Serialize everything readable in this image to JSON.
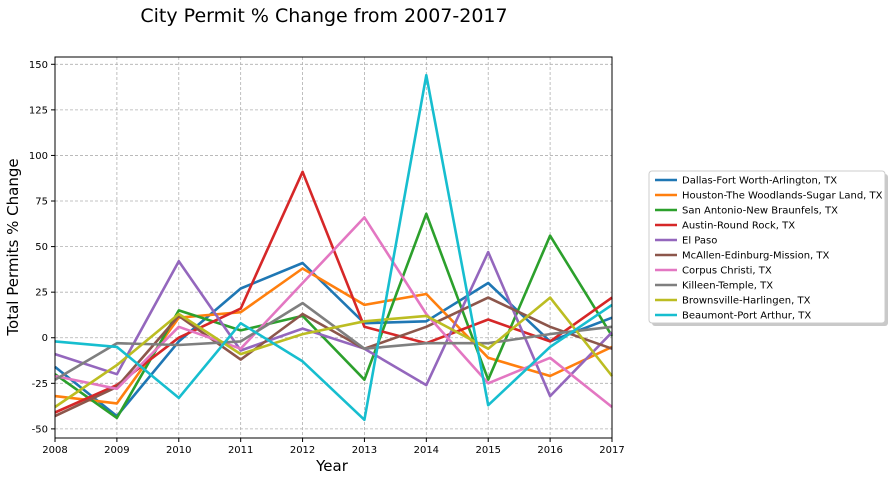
{
  "chart_data": {
    "type": "line",
    "title": "City Permit % Change from 2007-2017",
    "xlabel": "Year",
    "ylabel": "Total Permits % Change",
    "x": [
      2008,
      2009,
      2010,
      2011,
      2012,
      2013,
      2014,
      2015,
      2016,
      2017
    ],
    "xlim": [
      2008,
      2017
    ],
    "ylim": [
      -55,
      154
    ],
    "yticks": [
      -50,
      -25,
      0,
      25,
      50,
      75,
      100,
      125,
      150
    ],
    "grid": true,
    "legend_position": "right",
    "series": [
      {
        "name": "Dallas-Fort Worth-Arlington, TX",
        "color": "#1f77b4",
        "values": [
          -16,
          -43,
          -2,
          27,
          41,
          8,
          9,
          30,
          -2,
          11
        ]
      },
      {
        "name": "Houston-The Woodlands-Sugar Land, TX",
        "color": "#ff7f0e",
        "values": [
          -32,
          -36,
          11,
          14,
          38,
          18,
          24,
          -11,
          -21,
          -5
        ]
      },
      {
        "name": "San Antonio-New Braunfels, TX",
        "color": "#2ca02c",
        "values": [
          -20,
          -44,
          15,
          4,
          12,
          -23,
          68,
          -23,
          56,
          1
        ]
      },
      {
        "name": "Austin-Round Rock, TX",
        "color": "#d62728",
        "values": [
          -41,
          -26,
          0,
          16,
          91,
          6,
          -3,
          10,
          -2,
          22
        ]
      },
      {
        "name": "El Paso",
        "color": "#9467bd",
        "values": [
          -9,
          -20,
          42,
          -7,
          5,
          -6,
          -26,
          47,
          -32,
          3
        ]
      },
      {
        "name": "McAllen-Edinburg-Mission, TX",
        "color": "#8c564b",
        "values": [
          -43,
          -27,
          12,
          -12,
          13,
          -6,
          6,
          22,
          6,
          -6
        ]
      },
      {
        "name": "Corpus Christi, TX",
        "color": "#e377c2",
        "values": [
          -21,
          -28,
          6,
          -6,
          30,
          66,
          13,
          -25,
          -11,
          -38
        ]
      },
      {
        "name": "Killeen-Temple, TX",
        "color": "#7f7f7f",
        "values": [
          -23,
          -3,
          -4,
          -2,
          19,
          -6,
          -3,
          -3,
          2,
          6
        ]
      },
      {
        "name": "Brownsville-Harlingen, TX",
        "color": "#bcbd22",
        "values": [
          -38,
          -15,
          13,
          -9,
          2,
          9,
          12,
          -6,
          22,
          -21
        ]
      },
      {
        "name": "Beaumont-Port Arthur, TX",
        "color": "#17becf",
        "values": [
          -2,
          -5,
          -33,
          8,
          -13,
          -45,
          144,
          -37,
          -5,
          18
        ]
      }
    ]
  }
}
